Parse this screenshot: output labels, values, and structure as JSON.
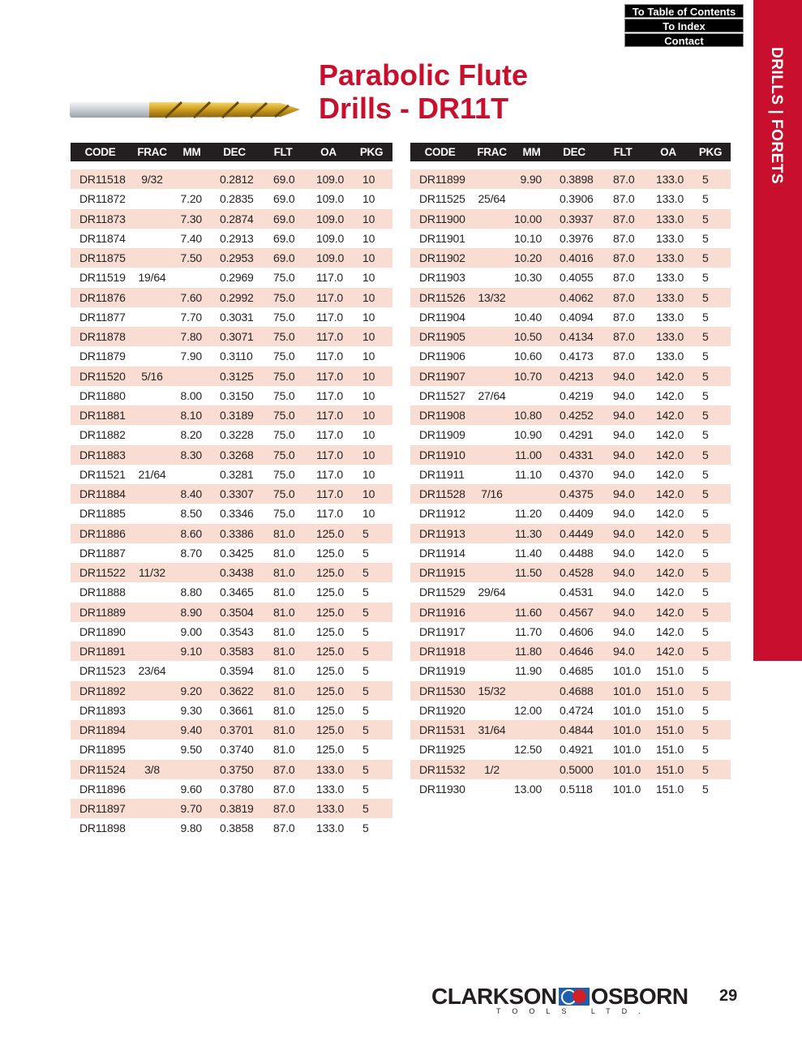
{
  "nav": {
    "toc": "To Table of Contents",
    "index": "To Index",
    "contact": "Contact"
  },
  "side_tab": "DRILLS | FORETS",
  "title": {
    "line1": "Parabolic Flute",
    "line2": "Drills - DR11T"
  },
  "colors": {
    "accent": "#c8102e",
    "stripe": "#f9ddd3",
    "header": "#231f20"
  },
  "columns": [
    "CODE",
    "FRAC",
    "MM",
    "DEC",
    "FLT",
    "OA",
    "PKG"
  ],
  "left_rows": [
    [
      "DR11518",
      "9/32",
      "",
      "0.2812",
      "69.0",
      "109.0",
      "10"
    ],
    [
      "DR11872",
      "",
      "7.20",
      "0.2835",
      "69.0",
      "109.0",
      "10"
    ],
    [
      "DR11873",
      "",
      "7.30",
      "0.2874",
      "69.0",
      "109.0",
      "10"
    ],
    [
      "DR11874",
      "",
      "7.40",
      "0.2913",
      "69.0",
      "109.0",
      "10"
    ],
    [
      "DR11875",
      "",
      "7.50",
      "0.2953",
      "69.0",
      "109.0",
      "10"
    ],
    [
      "DR11519",
      "19/64",
      "",
      "0.2969",
      "75.0",
      "117.0",
      "10"
    ],
    [
      "DR11876",
      "",
      "7.60",
      "0.2992",
      "75.0",
      "117.0",
      "10"
    ],
    [
      "DR11877",
      "",
      "7.70",
      "0.3031",
      "75.0",
      "117.0",
      "10"
    ],
    [
      "DR11878",
      "",
      "7.80",
      "0.3071",
      "75.0",
      "117.0",
      "10"
    ],
    [
      "DR11879",
      "",
      "7.90",
      "0.3110",
      "75.0",
      "117.0",
      "10"
    ],
    [
      "DR11520",
      "5/16",
      "",
      "0.3125",
      "75.0",
      "117.0",
      "10"
    ],
    [
      "DR11880",
      "",
      "8.00",
      "0.3150",
      "75.0",
      "117.0",
      "10"
    ],
    [
      "DR11881",
      "",
      "8.10",
      "0.3189",
      "75.0",
      "117.0",
      "10"
    ],
    [
      "DR11882",
      "",
      "8.20",
      "0.3228",
      "75.0",
      "117.0",
      "10"
    ],
    [
      "DR11883",
      "",
      "8.30",
      "0.3268",
      "75.0",
      "117.0",
      "10"
    ],
    [
      "DR11521",
      "21/64",
      "",
      "0.3281",
      "75.0",
      "117.0",
      "10"
    ],
    [
      "DR11884",
      "",
      "8.40",
      "0.3307",
      "75.0",
      "117.0",
      "10"
    ],
    [
      "DR11885",
      "",
      "8.50",
      "0.3346",
      "75.0",
      "117.0",
      "10"
    ],
    [
      "DR11886",
      "",
      "8.60",
      "0.3386",
      "81.0",
      "125.0",
      "5"
    ],
    [
      "DR11887",
      "",
      "8.70",
      "0.3425",
      "81.0",
      "125.0",
      "5"
    ],
    [
      "DR11522",
      "11/32",
      "",
      "0.3438",
      "81.0",
      "125.0",
      "5"
    ],
    [
      "DR11888",
      "",
      "8.80",
      "0.3465",
      "81.0",
      "125.0",
      "5"
    ],
    [
      "DR11889",
      "",
      "8.90",
      "0.3504",
      "81.0",
      "125.0",
      "5"
    ],
    [
      "DR11890",
      "",
      "9.00",
      "0.3543",
      "81.0",
      "125.0",
      "5"
    ],
    [
      "DR11891",
      "",
      "9.10",
      "0.3583",
      "81.0",
      "125.0",
      "5"
    ],
    [
      "DR11523",
      "23/64",
      "",
      "0.3594",
      "81.0",
      "125.0",
      "5"
    ],
    [
      "DR11892",
      "",
      "9.20",
      "0.3622",
      "81.0",
      "125.0",
      "5"
    ],
    [
      "DR11893",
      "",
      "9.30",
      "0.3661",
      "81.0",
      "125.0",
      "5"
    ],
    [
      "DR11894",
      "",
      "9.40",
      "0.3701",
      "81.0",
      "125.0",
      "5"
    ],
    [
      "DR11895",
      "",
      "9.50",
      "0.3740",
      "81.0",
      "125.0",
      "5"
    ],
    [
      "DR11524",
      "3/8",
      "",
      "0.3750",
      "87.0",
      "133.0",
      "5"
    ],
    [
      "DR11896",
      "",
      "9.60",
      "0.3780",
      "87.0",
      "133.0",
      "5"
    ],
    [
      "DR11897",
      "",
      "9.70",
      "0.3819",
      "87.0",
      "133.0",
      "5"
    ],
    [
      "DR11898",
      "",
      "9.80",
      "0.3858",
      "87.0",
      "133.0",
      "5"
    ]
  ],
  "right_rows": [
    [
      "DR11899",
      "",
      "9.90",
      "0.3898",
      "87.0",
      "133.0",
      "5"
    ],
    [
      "DR11525",
      "25/64",
      "",
      "0.3906",
      "87.0",
      "133.0",
      "5"
    ],
    [
      "DR11900",
      "",
      "10.00",
      "0.3937",
      "87.0",
      "133.0",
      "5"
    ],
    [
      "DR11901",
      "",
      "10.10",
      "0.3976",
      "87.0",
      "133.0",
      "5"
    ],
    [
      "DR11902",
      "",
      "10.20",
      "0.4016",
      "87.0",
      "133.0",
      "5"
    ],
    [
      "DR11903",
      "",
      "10.30",
      "0.4055",
      "87.0",
      "133.0",
      "5"
    ],
    [
      "DR11526",
      "13/32",
      "",
      "0.4062",
      "87.0",
      "133.0",
      "5"
    ],
    [
      "DR11904",
      "",
      "10.40",
      "0.4094",
      "87.0",
      "133.0",
      "5"
    ],
    [
      "DR11905",
      "",
      "10.50",
      "0.4134",
      "87.0",
      "133.0",
      "5"
    ],
    [
      "DR11906",
      "",
      "10.60",
      "0.4173",
      "87.0",
      "133.0",
      "5"
    ],
    [
      "DR11907",
      "",
      "10.70",
      "0.4213",
      "94.0",
      "142.0",
      "5"
    ],
    [
      "DR11527",
      "27/64",
      "",
      "0.4219",
      "94.0",
      "142.0",
      "5"
    ],
    [
      "DR11908",
      "",
      "10.80",
      "0.4252",
      "94.0",
      "142.0",
      "5"
    ],
    [
      "DR11909",
      "",
      "10.90",
      "0.4291",
      "94.0",
      "142.0",
      "5"
    ],
    [
      "DR11910",
      "",
      "11.00",
      "0.4331",
      "94.0",
      "142.0",
      "5"
    ],
    [
      "DR11911",
      "",
      "11.10",
      "0.4370",
      "94.0",
      "142.0",
      "5"
    ],
    [
      "DR11528",
      "7/16",
      "",
      "0.4375",
      "94.0",
      "142.0",
      "5"
    ],
    [
      "DR11912",
      "",
      "11.20",
      "0.4409",
      "94.0",
      "142.0",
      "5"
    ],
    [
      "DR11913",
      "",
      "11.30",
      "0.4449",
      "94.0",
      "142.0",
      "5"
    ],
    [
      "DR11914",
      "",
      "11.40",
      "0.4488",
      "94.0",
      "142.0",
      "5"
    ],
    [
      "DR11915",
      "",
      "11.50",
      "0.4528",
      "94.0",
      "142.0",
      "5"
    ],
    [
      "DR11529",
      "29/64",
      "",
      "0.4531",
      "94.0",
      "142.0",
      "5"
    ],
    [
      "DR11916",
      "",
      "11.60",
      "0.4567",
      "94.0",
      "142.0",
      "5"
    ],
    [
      "DR11917",
      "",
      "11.70",
      "0.4606",
      "94.0",
      "142.0",
      "5"
    ],
    [
      "DR11918",
      "",
      "11.80",
      "0.4646",
      "94.0",
      "142.0",
      "5"
    ],
    [
      "DR11919",
      "",
      "11.90",
      "0.4685",
      "101.0",
      "151.0",
      "5"
    ],
    [
      "DR11530",
      "15/32",
      "",
      "0.4688",
      "101.0",
      "151.0",
      "5"
    ],
    [
      "DR11920",
      "",
      "12.00",
      "0.4724",
      "101.0",
      "151.0",
      "5"
    ],
    [
      "DR11531",
      "31/64",
      "",
      "0.4844",
      "101.0",
      "151.0",
      "5"
    ],
    [
      "DR11925",
      "",
      "12.50",
      "0.4921",
      "101.0",
      "151.0",
      "5"
    ],
    [
      "DR11532",
      "1/2",
      "",
      "0.5000",
      "101.0",
      "151.0",
      "5"
    ],
    [
      "DR11930",
      "",
      "13.00",
      "0.5118",
      "101.0",
      "151.0",
      "5"
    ]
  ],
  "footer": {
    "brand_left": "CLARKSON",
    "brand_right": "OSBORN",
    "brand_sub": "TOOLS LTD.",
    "page_number": "29"
  }
}
